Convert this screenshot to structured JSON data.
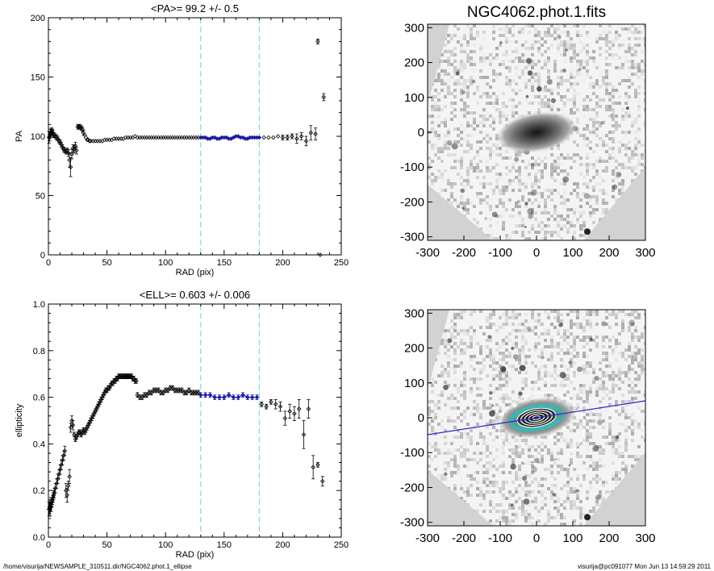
{
  "footer": {
    "path": "/home/visurija/NEWSAMPLE_310511.dir/NGC4062.phot.1_ellipse",
    "user_stamp": "visurija@pc091077  Mon Jun 13 14:59:29 2011"
  },
  "chart_data": [
    {
      "type": "scatter",
      "title": "<PA>=  99.2 +/-   0.5",
      "xlabel": "RAD (pix)",
      "ylabel": "PA",
      "xlim": [
        0,
        250
      ],
      "ylim": [
        0,
        200
      ],
      "xticks": [
        "0",
        "50",
        "100",
        "150",
        "200",
        "250"
      ],
      "yticks": [
        "0",
        "50",
        "100",
        "150",
        "200"
      ],
      "vlines": [
        130,
        180
      ],
      "fit_region_color": "#1a1aa0",
      "vline_color": "#7fe0d8",
      "series": [
        {
          "x": [
            0.5,
            1,
            1.5,
            2,
            2.5,
            3,
            3.5,
            4,
            5,
            6,
            7,
            8,
            9,
            10,
            11,
            12,
            13,
            14,
            15,
            16,
            17,
            18,
            19,
            20,
            21,
            22,
            23,
            24,
            25,
            26,
            27,
            28,
            29,
            30,
            31,
            32,
            33,
            34,
            35,
            36,
            38,
            40,
            42,
            44,
            46,
            48,
            50,
            52,
            54,
            56,
            58,
            60,
            62,
            64,
            66,
            68,
            70,
            72,
            74,
            76,
            78,
            80,
            82,
            84,
            86,
            88,
            90,
            92,
            94,
            96,
            98,
            100,
            102,
            104,
            106,
            108,
            110,
            112,
            114,
            116,
            118,
            120,
            122,
            124,
            126,
            128
          ],
          "y": [
            99,
            100,
            102,
            103,
            104,
            104,
            103,
            102,
            101,
            100,
            99,
            98,
            96,
            95,
            93,
            91,
            89,
            88,
            87,
            88,
            86,
            80,
            74,
            85,
            90,
            89,
            92,
            88,
            108,
            108,
            108,
            107,
            106,
            103,
            101,
            99,
            97,
            97,
            96,
            96,
            96,
            96,
            96,
            96,
            96,
            97,
            97,
            97,
            97,
            98,
            98,
            98,
            98,
            98,
            99,
            99,
            99,
            99,
            100,
            99,
            99,
            99,
            99,
            99,
            99,
            99,
            99,
            99,
            99,
            99,
            99,
            99,
            99,
            99,
            99,
            99,
            99,
            99,
            99,
            99,
            99,
            99,
            99,
            99,
            99,
            99
          ],
          "yerr": [
            5,
            4,
            4,
            3,
            3,
            3,
            3,
            3,
            2,
            2,
            2,
            2,
            2,
            2,
            2,
            2,
            2,
            2,
            2,
            2,
            3,
            6,
            8,
            4,
            3,
            3,
            3,
            3,
            2,
            2,
            2,
            2,
            2,
            2,
            1,
            1,
            1,
            1,
            1,
            1,
            1,
            1,
            1,
            1,
            1,
            1,
            1,
            1,
            1,
            1,
            1,
            1,
            1,
            1,
            1,
            1,
            1,
            1,
            1,
            1,
            1,
            1,
            1,
            1,
            1,
            1,
            1,
            1,
            1,
            1,
            1,
            1,
            1,
            1,
            1,
            1,
            1,
            1,
            1,
            1,
            1,
            1,
            1,
            1,
            1,
            1
          ]
        },
        {
          "x": [
            130,
            132,
            134,
            136,
            138,
            140,
            142,
            144,
            146,
            148,
            150,
            152,
            154,
            156,
            158,
            160,
            162,
            164,
            166,
            168,
            170,
            172,
            174,
            176,
            178,
            180
          ],
          "y": [
            99,
            99,
            99,
            98,
            98,
            99,
            99,
            98,
            98,
            99,
            99,
            99,
            98,
            98,
            99,
            100,
            100,
            99,
            99,
            98,
            98,
            99,
            99,
            99,
            99,
            99
          ],
          "yerr": [
            1,
            1,
            1,
            1,
            1,
            1,
            1,
            1,
            1,
            1,
            1,
            1,
            1,
            1,
            1,
            1,
            1,
            1,
            1,
            1,
            1,
            1,
            1,
            1,
            1,
            1
          ],
          "highlight": true
        },
        {
          "x": [
            184,
            188,
            192,
            196,
            200,
            204,
            208,
            212,
            216,
            220,
            224,
            228,
            232,
            235
          ],
          "y": [
            99,
            99,
            99,
            100,
            99,
            99,
            100,
            98,
            100,
            96,
            103,
            102,
            0,
            133
          ],
          "yerr": [
            1,
            1,
            1,
            1,
            2,
            2,
            2,
            4,
            3,
            4,
            6,
            5,
            1,
            3
          ]
        },
        {
          "x": [
            230
          ],
          "y": [
            180
          ],
          "yerr": [
            2
          ]
        }
      ]
    },
    {
      "type": "scatter",
      "title": "<ELL>= 0.603 +/-  0.006",
      "xlabel": "RAD (pix)",
      "ylabel": "ellipticity",
      "xlim": [
        0,
        250
      ],
      "ylim": [
        0,
        1.0
      ],
      "xticks": [
        "0",
        "50",
        "100",
        "150",
        "200",
        "250"
      ],
      "yticks": [
        "0.0",
        "0.2",
        "0.4",
        "0.6",
        "0.8",
        "1.0"
      ],
      "vlines": [
        130,
        180
      ],
      "fit_region_color": "#1a1aa0",
      "vline_color": "#7fe0d8",
      "series": [
        {
          "x": [
            0.5,
            1,
            1.5,
            2,
            2.5,
            3,
            3.5,
            4,
            4.5,
            5,
            6,
            7,
            8,
            9,
            10,
            11,
            12,
            13,
            14,
            15,
            16,
            17,
            18,
            19,
            20,
            21,
            22,
            23,
            24,
            25,
            26,
            27,
            28,
            29,
            30,
            31,
            32,
            33,
            34,
            35,
            36,
            37,
            38,
            39,
            40,
            41,
            42,
            43,
            44,
            45,
            46,
            47,
            48,
            49,
            50,
            51,
            52,
            53,
            54,
            55,
            56,
            57,
            58,
            59,
            60,
            61,
            62,
            63,
            64,
            65,
            66,
            67,
            68,
            69,
            70,
            71,
            72,
            73,
            74,
            75
          ],
          "y": [
            0.12,
            0.13,
            0.12,
            0.14,
            0.13,
            0.15,
            0.16,
            0.17,
            0.18,
            0.19,
            0.21,
            0.23,
            0.25,
            0.27,
            0.29,
            0.31,
            0.33,
            0.35,
            0.37,
            0.2,
            0.18,
            0.22,
            0.26,
            0.47,
            0.5,
            0.48,
            0.44,
            0.42,
            0.43,
            0.44,
            0.45,
            0.45,
            0.44,
            0.45,
            0.46,
            0.45,
            0.46,
            0.47,
            0.48,
            0.49,
            0.5,
            0.51,
            0.52,
            0.53,
            0.54,
            0.55,
            0.56,
            0.57,
            0.58,
            0.59,
            0.6,
            0.61,
            0.62,
            0.63,
            0.63,
            0.64,
            0.64,
            0.65,
            0.66,
            0.66,
            0.67,
            0.67,
            0.68,
            0.68,
            0.69,
            0.69,
            0.69,
            0.69,
            0.69,
            0.69,
            0.69,
            0.69,
            0.69,
            0.69,
            0.69,
            0.69,
            0.68,
            0.68,
            0.67,
            0.67
          ],
          "yerr": [
            0.03,
            0.03,
            0.03,
            0.03,
            0.02,
            0.02,
            0.02,
            0.02,
            0.02,
            0.02,
            0.02,
            0.02,
            0.02,
            0.02,
            0.02,
            0.02,
            0.02,
            0.02,
            0.02,
            0.03,
            0.03,
            0.02,
            0.03,
            0.02,
            0.02,
            0.02,
            0.01,
            0.01,
            0.01,
            0.01,
            0.01,
            0.01,
            0.01,
            0.01,
            0.01,
            0.01,
            0.01,
            0.01,
            0.01,
            0.01,
            0.01,
            0.01,
            0.01,
            0.01,
            0.01,
            0.01,
            0.01,
            0.01,
            0.01,
            0.01,
            0.01,
            0.01,
            0.01,
            0.01,
            0.01,
            0.01,
            0.01,
            0.01,
            0.01,
            0.01,
            0.01,
            0.01,
            0.01,
            0.01,
            0.01,
            0.01,
            0.01,
            0.01,
            0.01,
            0.01,
            0.01,
            0.01,
            0.01,
            0.01,
            0.01,
            0.01,
            0.01,
            0.01,
            0.01,
            0.01
          ]
        },
        {
          "x": [
            76,
            78,
            80,
            82,
            84,
            86,
            88,
            90,
            92,
            94,
            96,
            98,
            100,
            102,
            104,
            106,
            108,
            110,
            112,
            114,
            116,
            118,
            120,
            122,
            124,
            126,
            128
          ],
          "y": [
            0.61,
            0.6,
            0.6,
            0.61,
            0.61,
            0.62,
            0.62,
            0.63,
            0.63,
            0.63,
            0.62,
            0.62,
            0.63,
            0.63,
            0.64,
            0.64,
            0.63,
            0.63,
            0.63,
            0.63,
            0.62,
            0.62,
            0.63,
            0.62,
            0.62,
            0.62,
            0.62
          ],
          "yerr": [
            0.01,
            0.01,
            0.01,
            0.01,
            0.01,
            0.01,
            0.01,
            0.01,
            0.01,
            0.01,
            0.01,
            0.01,
            0.01,
            0.01,
            0.01,
            0.01,
            0.01,
            0.01,
            0.01,
            0.01,
            0.01,
            0.01,
            0.01,
            0.01,
            0.01,
            0.01,
            0.01
          ]
        },
        {
          "x": [
            130,
            134,
            138,
            142,
            146,
            150,
            154,
            158,
            162,
            166,
            170,
            174,
            178
          ],
          "y": [
            0.61,
            0.61,
            0.61,
            0.6,
            0.6,
            0.6,
            0.61,
            0.6,
            0.6,
            0.61,
            0.6,
            0.6,
            0.6
          ],
          "yerr": [
            0.01,
            0.01,
            0.01,
            0.01,
            0.01,
            0.01,
            0.01,
            0.01,
            0.01,
            0.01,
            0.01,
            0.01,
            0.01
          ],
          "highlight": true
        },
        {
          "x": [
            182,
            186,
            190,
            194,
            198,
            202,
            206,
            210,
            214,
            218,
            222,
            226,
            230,
            234
          ],
          "y": [
            0.57,
            0.56,
            0.58,
            0.57,
            0.56,
            0.51,
            0.54,
            0.53,
            0.55,
            0.44,
            0.55,
            0.3,
            0.31,
            0.24
          ],
          "yerr": [
            0.01,
            0.01,
            0.01,
            0.02,
            0.02,
            0.03,
            0.03,
            0.03,
            0.04,
            0.06,
            0.04,
            0.05,
            0.01,
            0.02
          ]
        }
      ]
    },
    {
      "type": "heatmap",
      "title": "NGC4062.phot.1.fits",
      "xlim": [
        -300,
        300
      ],
      "ylim": [
        -310,
        310
      ],
      "xticks": [
        "-300",
        "-200",
        "-100",
        "0",
        "100",
        "200",
        "300"
      ],
      "yticks": [
        "-300",
        "-200",
        "-100",
        "0",
        "100",
        "200",
        "300"
      ],
      "galaxy": {
        "pa_deg": 99.2,
        "ellipticity": 0.603,
        "center": [
          0,
          0
        ]
      }
    },
    {
      "type": "heatmap",
      "title": "",
      "xlim": [
        -300,
        300
      ],
      "ylim": [
        -310,
        310
      ],
      "xticks": [
        "-300",
        "-200",
        "-100",
        "0",
        "100",
        "200",
        "300"
      ],
      "yticks": [
        "-300",
        "-200",
        "-100",
        "0",
        "100",
        "200",
        "300"
      ],
      "galaxy": {
        "pa_deg": 99.2,
        "ellipticity": 0.603,
        "center": [
          0,
          0
        ]
      },
      "overlay": {
        "major_axis_line_color": "#2a2ad0",
        "isophote_colors": [
          "#ffffff",
          "#111111",
          "#3fb6b0"
        ],
        "outer_ellipse_color": "#ffffff"
      }
    }
  ]
}
